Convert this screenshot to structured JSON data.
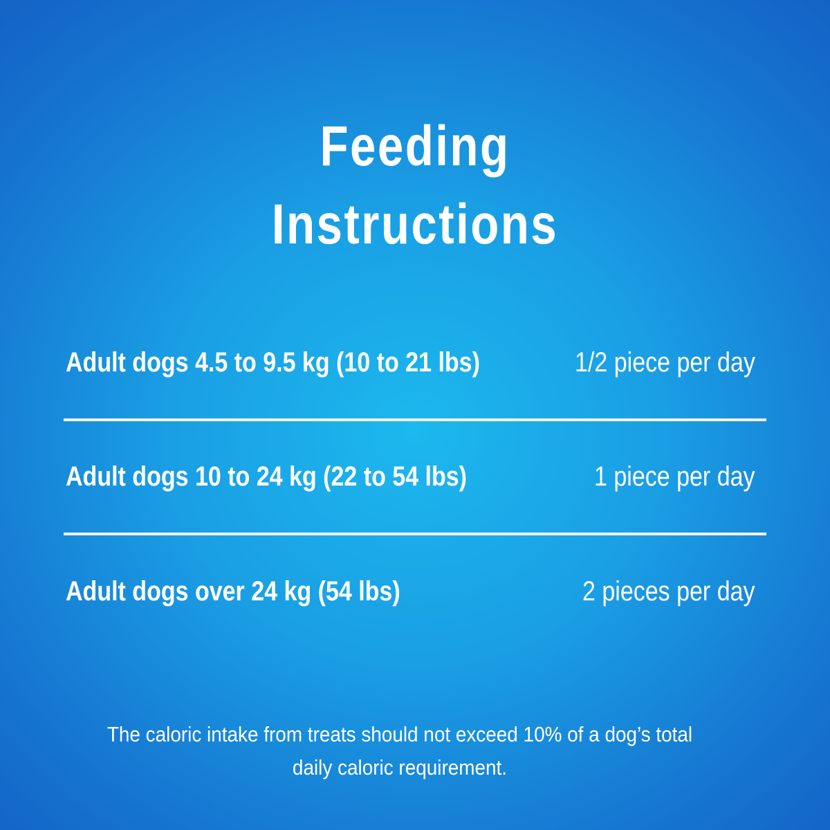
{
  "title": [
    "Feeding",
    "Instructions"
  ],
  "table": {
    "rows": [
      [
        "Adult dogs 4.5 to 9.5 kg (10 to 21 lbs)",
        "1/2 piece per day"
      ],
      [
        "Adult dogs 10 to 24 kg (22 to 54 lbs)",
        "1 piece per day"
      ],
      [
        "Adult dogs over 24 kg (54 lbs)",
        "2 pieces per day"
      ]
    ]
  },
  "footnote": [
    "The caloric intake from treats should not exceed 10% of a dog’s total",
    "daily caloric requirement."
  ]
}
